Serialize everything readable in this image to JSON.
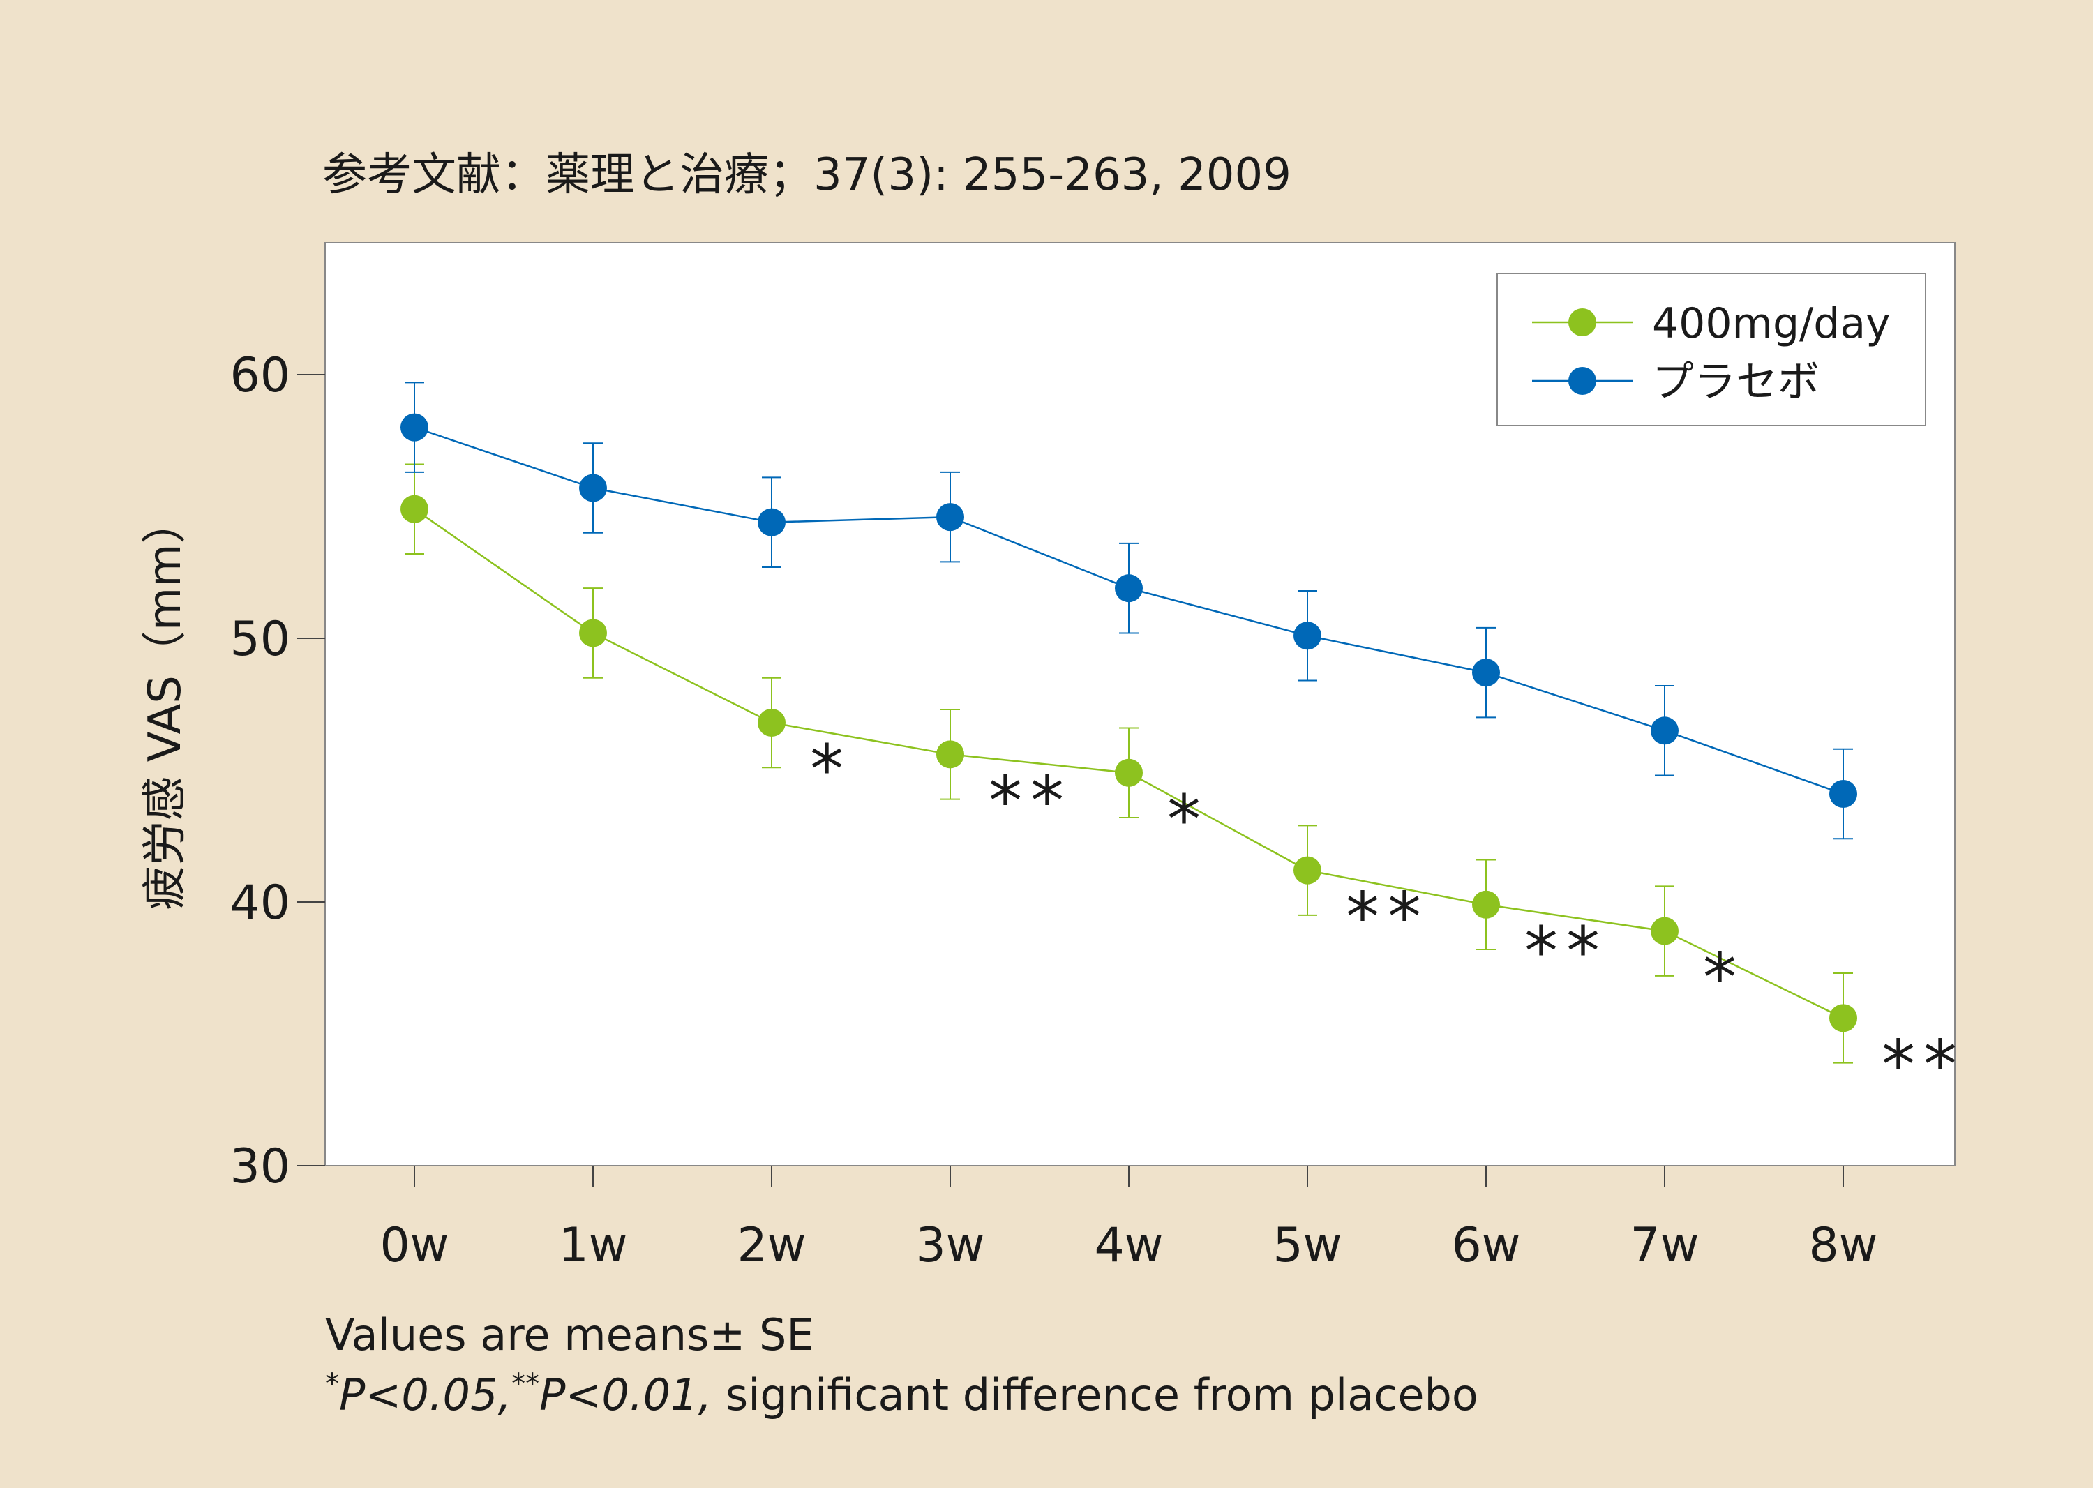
{
  "chart_data": {
    "type": "line",
    "title": "参考文献：薬理と治療；37(3): 255-263, 2009",
    "xlabel": "",
    "ylabel": "疲労感 VAS（mm）",
    "categories": [
      "0w",
      "1w",
      "2w",
      "3w",
      "4w",
      "5w",
      "6w",
      "7w",
      "8w"
    ],
    "ylim": [
      30,
      65
    ],
    "yticks": [
      30,
      40,
      50,
      60
    ],
    "grid": false,
    "legend_position": "top-right",
    "series": [
      {
        "name": "400mg/day",
        "color": "#8dc21f",
        "values": [
          54.9,
          50.2,
          46.8,
          45.6,
          44.9,
          41.2,
          39.9,
          38.9,
          35.6
        ],
        "errors": [
          1.7,
          1.7,
          1.7,
          1.7,
          1.7,
          1.7,
          1.7,
          1.7,
          1.7
        ],
        "significance": [
          "",
          "",
          "*",
          "**",
          "*",
          "**",
          "**",
          "*",
          "**"
        ]
      },
      {
        "name": "プラセボ",
        "color": "#0068b7",
        "values": [
          58.0,
          55.7,
          54.4,
          54.6,
          51.9,
          50.1,
          48.7,
          46.5,
          44.1
        ],
        "errors": [
          1.7,
          1.7,
          1.7,
          1.7,
          1.7,
          1.7,
          1.7,
          1.7,
          1.7
        ]
      }
    ],
    "notes": [
      "Values are means± SE",
      "*P<0.05, **P<0.01, significant difference from placebo"
    ]
  },
  "notes_parts": {
    "line1": "Values are means± SE",
    "sup1": "*",
    "p1": "P<0.05,",
    "sup2": "**",
    "p2": "P<0.01,",
    "rest": " significant difference from placebo"
  }
}
